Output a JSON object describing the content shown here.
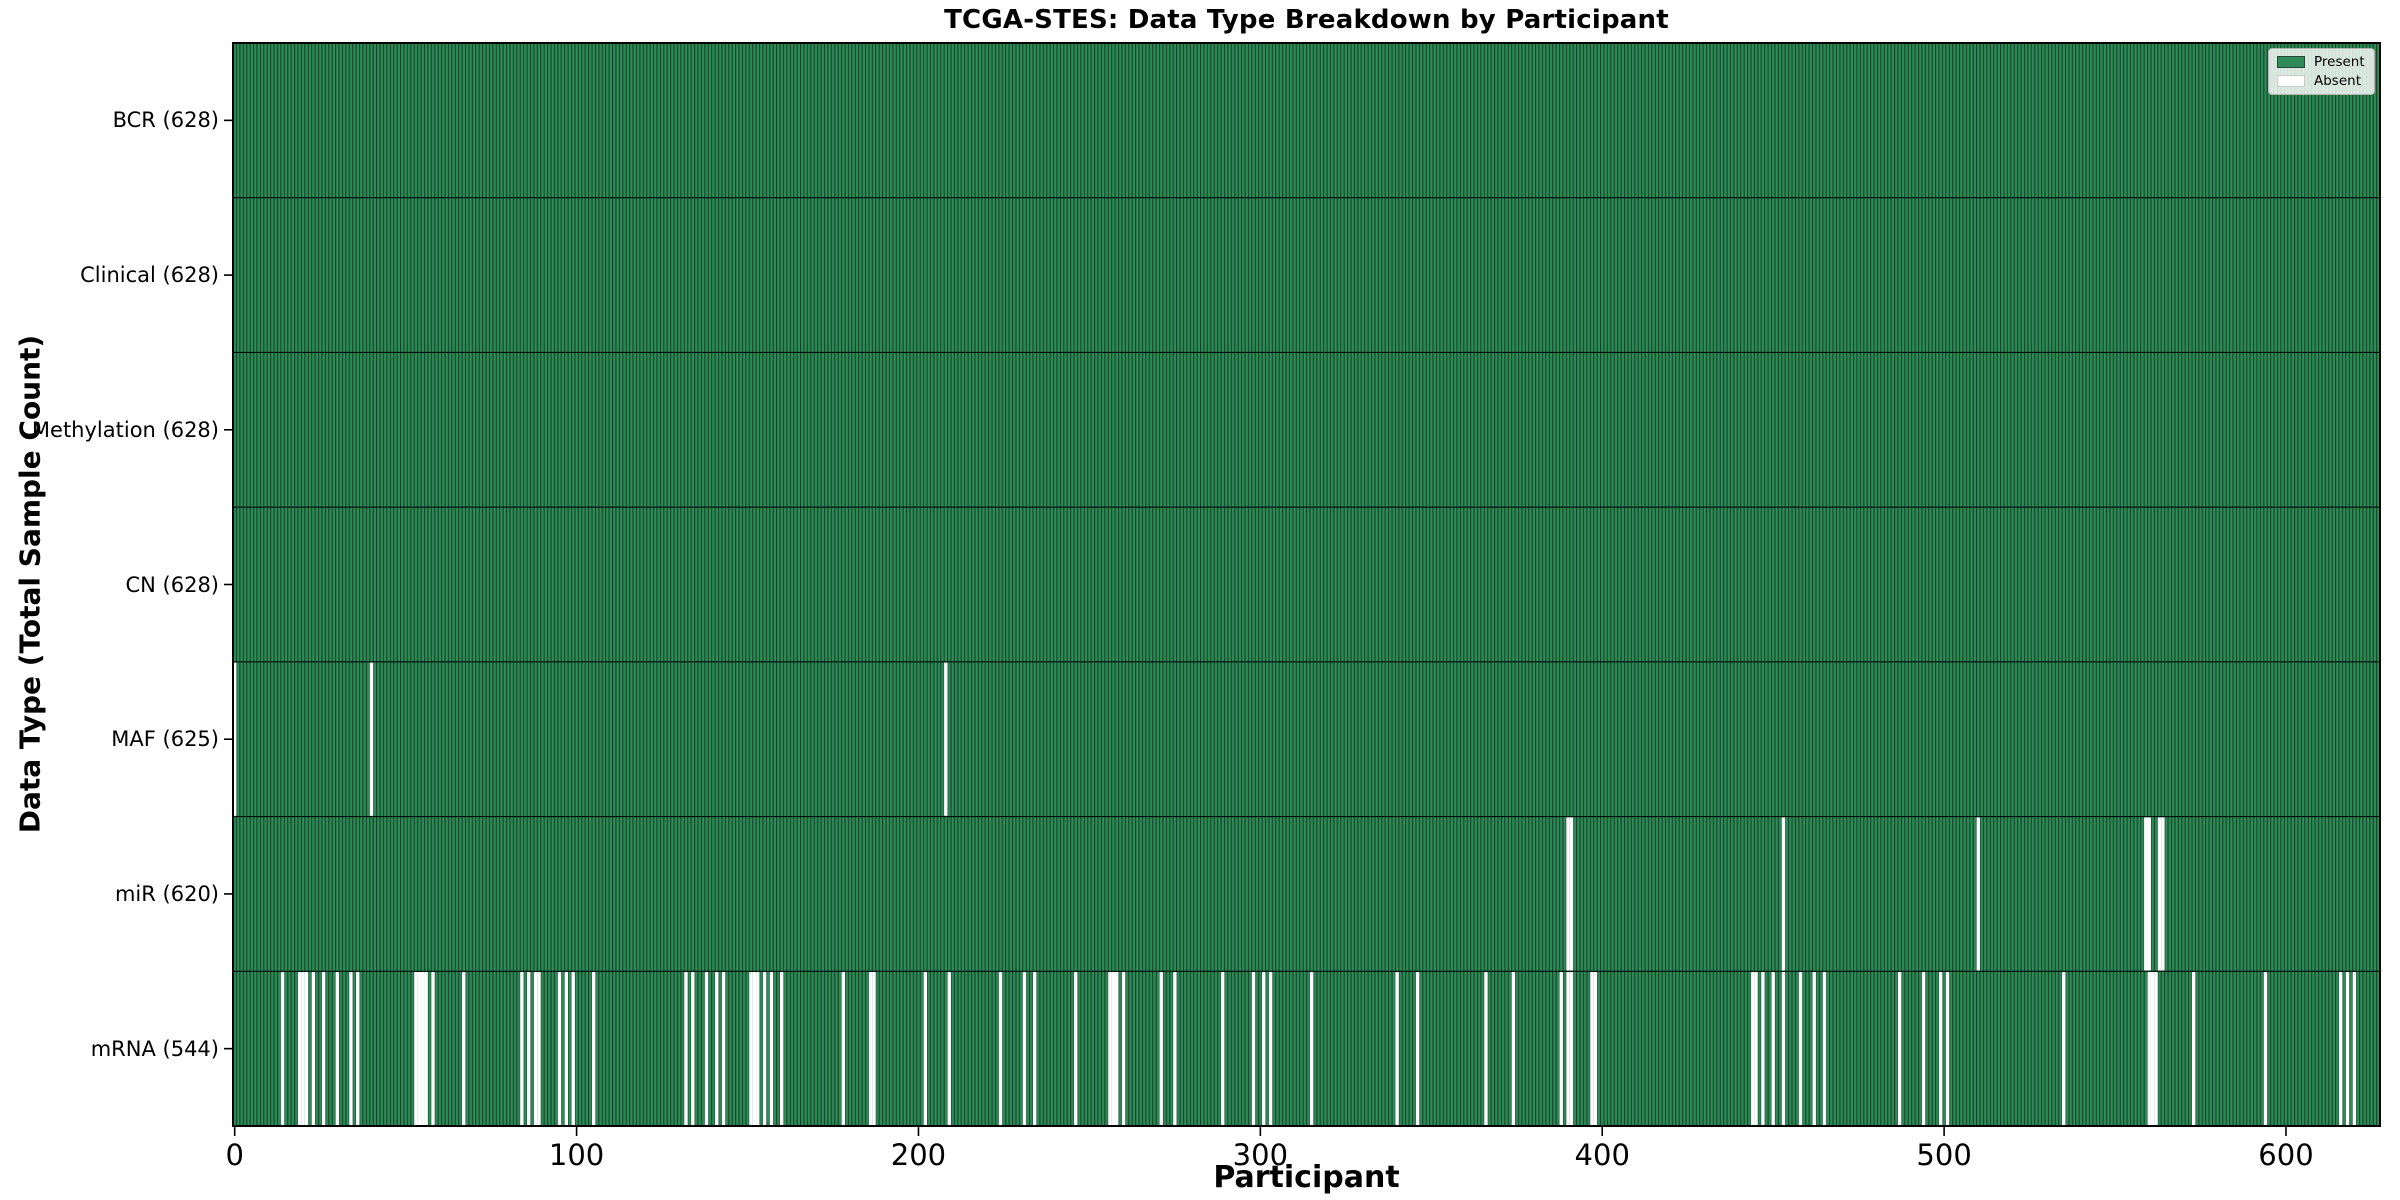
{
  "title": "TCGA-STES: Data Type Breakdown by Participant",
  "chart_data": {
    "type": "heatmap",
    "title": "TCGA-STES: Data Type Breakdown by Participant",
    "xlabel": "Participant",
    "ylabel": "Data Type (Total Sample Count)",
    "x_ticks": [
      0,
      100,
      200,
      300,
      400,
      500,
      600
    ],
    "x_range": [
      0,
      627
    ],
    "n_participants": 628,
    "grid": false,
    "legend_position": "upper right",
    "legend": [
      {
        "label": "Present",
        "color": "#2e8b57"
      },
      {
        "label": "Absent",
        "color": "#ffffff"
      }
    ],
    "colors": {
      "present": "#2e8b57",
      "absent": "#ffffff",
      "edge": "#14462a",
      "border": "#000000"
    },
    "rows": [
      {
        "name": "BCR",
        "label": "BCR (628)",
        "total": 628,
        "absent": []
      },
      {
        "name": "Clinical",
        "label": "Clinical (628)",
        "total": 628,
        "absent": []
      },
      {
        "name": "Methylation",
        "label": "Methylation (628)",
        "total": 628,
        "absent": []
      },
      {
        "name": "CN",
        "label": "CN (628)",
        "total": 628,
        "absent": []
      },
      {
        "name": "MAF",
        "label": "MAF (625)",
        "total": 625,
        "absent": [
          0,
          40,
          208
        ]
      },
      {
        "name": "miR",
        "label": "miR (620)",
        "total": 620,
        "absent": [
          390,
          391,
          453,
          510,
          559,
          560,
          563,
          564
        ]
      },
      {
        "name": "mRNA",
        "label": "mRNA (544)",
        "total": 544,
        "absent": [
          14,
          19,
          20,
          21,
          23,
          26,
          30,
          34,
          36,
          53,
          54,
          55,
          56,
          58,
          67,
          84,
          86,
          88,
          89,
          95,
          97,
          99,
          105,
          132,
          134,
          138,
          141,
          143,
          151,
          152,
          153,
          155,
          157,
          160,
          178,
          186,
          187,
          202,
          209,
          224,
          231,
          234,
          246,
          256,
          257,
          258,
          260,
          271,
          275,
          289,
          298,
          301,
          303,
          315,
          340,
          346,
          366,
          374,
          388,
          390,
          391,
          397,
          398,
          444,
          445,
          447,
          450,
          453,
          458,
          462,
          465,
          487,
          494,
          499,
          501,
          535,
          560,
          561,
          562,
          573,
          594,
          616,
          618,
          620
        ]
      }
    ]
  }
}
